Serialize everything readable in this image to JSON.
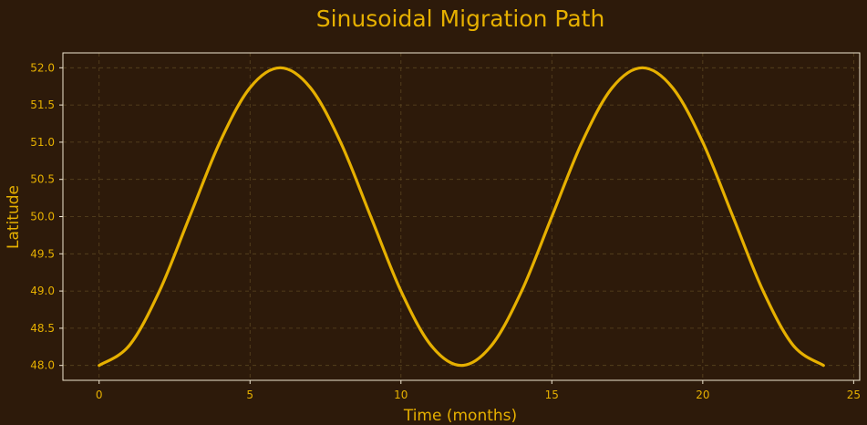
{
  "chart_data": {
    "type": "line",
    "title": "Sinusoidal Migration Path",
    "xlabel": "Time (months)",
    "ylabel": "Latitude",
    "xlim": [
      -1.2,
      25.2
    ],
    "ylim": [
      47.8,
      52.2
    ],
    "xticks": [
      0,
      5,
      10,
      15,
      20,
      25
    ],
    "yticks": [
      48.0,
      48.5,
      49.0,
      49.5,
      50.0,
      50.5,
      51.0,
      51.5,
      52.0
    ],
    "ytick_labels": [
      "48.0",
      "48.5",
      "49.0",
      "49.5",
      "50.0",
      "50.5",
      "51.0",
      "51.5",
      "52.0"
    ],
    "grid": true,
    "series": [
      {
        "x": [
          0,
          1,
          2,
          3,
          4,
          5,
          6,
          7,
          8,
          9,
          10,
          11,
          12,
          13,
          14,
          15,
          16,
          17,
          18,
          19,
          20,
          21,
          22,
          23,
          24
        ],
        "y": [
          48.0,
          48.268,
          49.0,
          50.0,
          51.0,
          51.732,
          52.0,
          51.732,
          51.0,
          50.0,
          49.0,
          48.268,
          48.0,
          48.268,
          49.0,
          50.0,
          51.0,
          51.732,
          52.0,
          51.732,
          51.0,
          50.0,
          49.0,
          48.268,
          48.0
        ]
      }
    ],
    "colors": {
      "background": "#2d1a0a",
      "line": "#e6b000",
      "text": "#e6b000",
      "frame": "#f0e6d0",
      "grid": "#5a4520"
    }
  }
}
